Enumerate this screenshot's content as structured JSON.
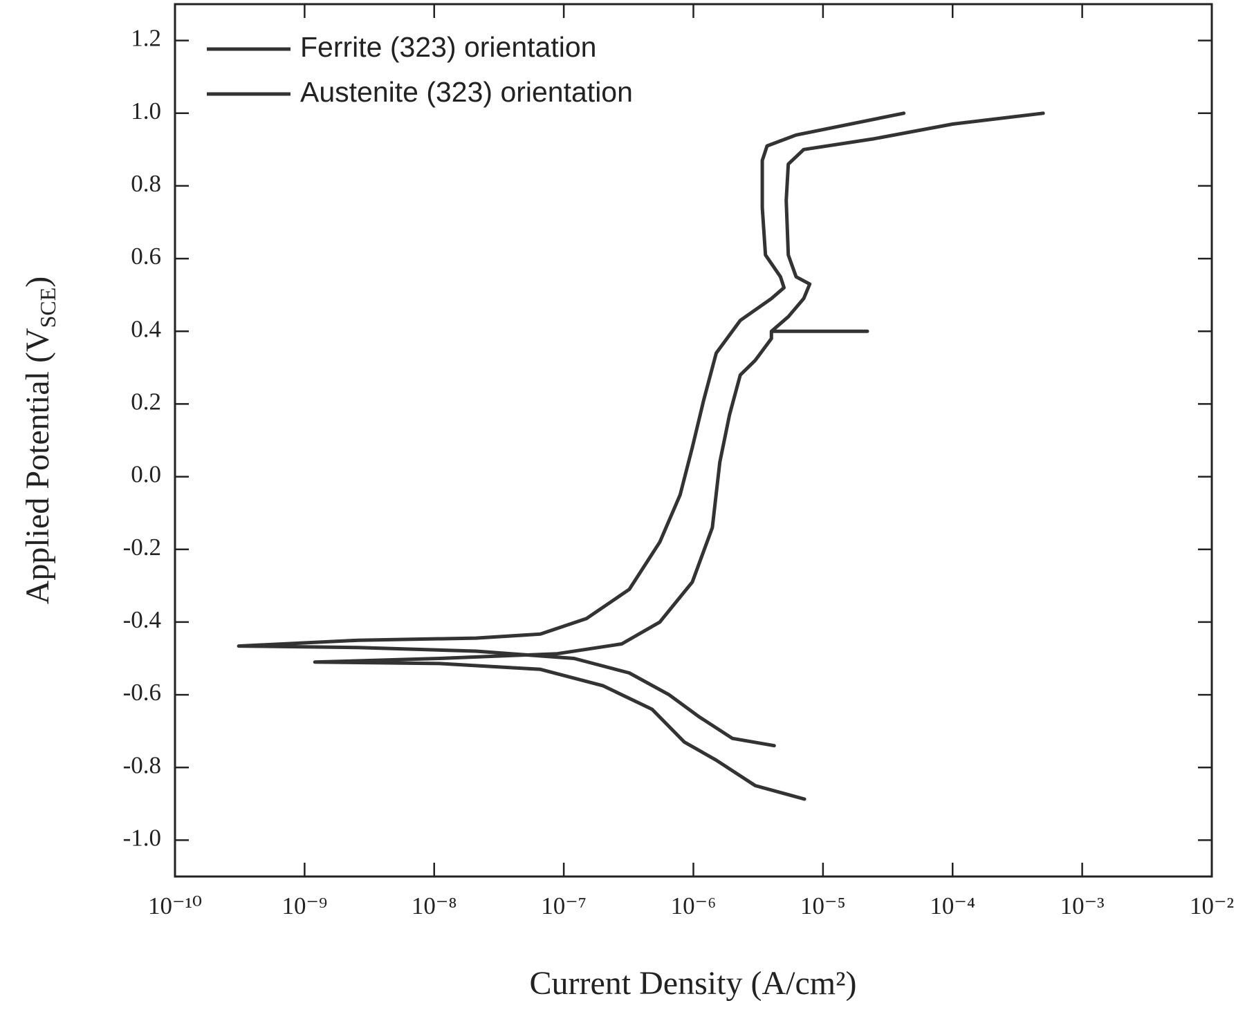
{
  "chart_data": {
    "type": "line",
    "x_label": "Current Density (A/cm²)",
    "y_label": [
      "Applied Potential (V",
      "SCE",
      ")"
    ],
    "xscale": "log",
    "xlim": [
      1e-10,
      0.01
    ],
    "xticks": [
      {
        "value": 1e-10,
        "label": "10⁻¹⁰"
      },
      {
        "value": 1e-09,
        "label": "10⁻⁹"
      },
      {
        "value": 1e-08,
        "label": "10⁻⁸"
      },
      {
        "value": 1e-07,
        "label": "10⁻⁷"
      },
      {
        "value": 1e-06,
        "label": "10⁻⁶"
      },
      {
        "value": 1e-05,
        "label": "10⁻⁵"
      },
      {
        "value": 0.0001,
        "label": "10⁻⁴"
      },
      {
        "value": 0.001,
        "label": "10⁻³"
      },
      {
        "value": 0.01,
        "label": "10⁻²"
      }
    ],
    "ylim": [
      -1.1,
      1.3
    ],
    "yticks": [
      {
        "value": -1,
        "label": "-1.0"
      },
      -0.8,
      -0.6,
      -0.4,
      -0.2,
      {
        "value": 0,
        "label": "0.0"
      },
      0.2,
      0.4,
      0.6,
      0.8,
      {
        "value": 1,
        "label": "1.0"
      },
      1.2
    ],
    "legend": "upper left",
    "series": [
      {
        "name": "Ferrite (323) orientation",
        "color": "#333333",
        "x": [
          4.2e-06,
          2e-06,
          1.1e-06,
          6.5e-07,
          3.2e-07,
          1.2e-07,
          2.1e-08,
          2.6e-09,
          3.1e-10,
          2.6e-09,
          2.1e-08,
          6.6e-08,
          1.5e-07,
          3.2e-07,
          5.5e-07,
          7.9e-07,
          9.8e-07,
          1.2e-06,
          1.5e-06,
          2.3e-06,
          4e-06,
          5e-06,
          4.7e-06,
          3.6e-06,
          3.4e-06,
          3.4e-06,
          3.7e-06,
          6.2e-06,
          4.2e-05
        ],
        "values": [
          -0.74,
          -0.72,
          -0.66,
          -0.6,
          -0.54,
          -0.5,
          -0.48,
          -0.47,
          -0.466,
          -0.45,
          -0.444,
          -0.433,
          -0.39,
          -0.31,
          -0.18,
          -0.05,
          0.08,
          0.21,
          0.34,
          0.43,
          0.49,
          0.52,
          0.55,
          0.61,
          0.74,
          0.87,
          0.91,
          0.94,
          1.0
        ]
      },
      {
        "name": "Austenite (323) orientation",
        "color": "#333333",
        "x": [
          7.2e-06,
          3e-06,
          1.5e-06,
          8.5e-07,
          4.8e-07,
          2e-07,
          6.6e-08,
          1.1e-08,
          1.2e-09,
          1.1e-08,
          8.9e-08,
          2.8e-07,
          5.5e-07,
          9.8e-07,
          1.4e-06,
          1.6e-06,
          1.9e-06,
          2.3e-06,
          3e-06,
          4e-06,
          4e-06,
          2.2e-05,
          4e-06,
          5.4e-06,
          7.1e-06,
          7.9e-06,
          6.2e-06,
          5.4e-06,
          5.2e-06,
          5.4e-06,
          7.1e-06,
          2.5e-05,
          0.0001,
          0.0005
        ],
        "values": [
          -0.887,
          -0.85,
          -0.78,
          -0.73,
          -0.64,
          -0.575,
          -0.53,
          -0.514,
          -0.51,
          -0.5,
          -0.487,
          -0.46,
          -0.4,
          -0.29,
          -0.14,
          0.04,
          0.17,
          0.28,
          0.32,
          0.38,
          0.4,
          0.4,
          0.4,
          0.44,
          0.49,
          0.53,
          0.55,
          0.61,
          0.76,
          0.86,
          0.9,
          0.93,
          0.97,
          1.0
        ]
      }
    ]
  }
}
